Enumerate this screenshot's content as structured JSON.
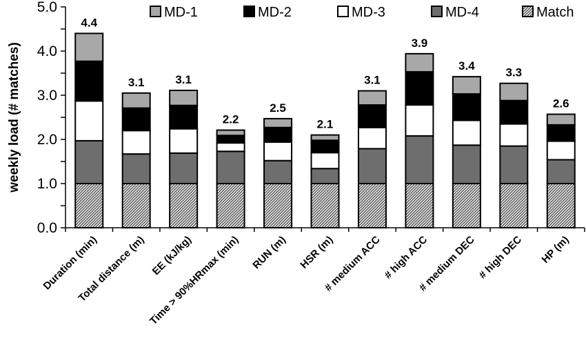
{
  "chart_data": {
    "type": "bar",
    "stacked": true,
    "title": "",
    "xlabel": "",
    "ylabel": "weekly load (# matches)",
    "ylim": [
      0,
      5
    ],
    "y_ticks": [
      "0.0",
      "1.0",
      "2.0",
      "3.0",
      "4.0",
      "5.0"
    ],
    "grid": false,
    "legend_position": "top",
    "categories": [
      "Duration (min)",
      "Total distance (m)",
      "EE (kJ/kg)",
      "Time > 90%HRmax (min)",
      "RUN (m)",
      "HSR (m)",
      "# medium ACC",
      "# high ACC",
      "# medium DEC",
      "# high DEC",
      "HP (m)"
    ],
    "series": [
      {
        "name": "Match",
        "color": "#bdbdbd",
        "pattern": "hatched",
        "values": [
          1.0,
          1.0,
          1.0,
          1.0,
          1.0,
          1.0,
          1.0,
          1.0,
          1.0,
          1.0,
          1.0
        ]
      },
      {
        "name": "MD-4",
        "color": "#6e6e6e",
        "values": [
          0.97,
          0.67,
          0.69,
          0.73,
          0.52,
          0.34,
          0.79,
          1.08,
          0.87,
          0.85,
          0.54
        ]
      },
      {
        "name": "MD-3",
        "color": "#ffffff",
        "values": [
          0.9,
          0.53,
          0.55,
          0.19,
          0.42,
          0.36,
          0.48,
          0.7,
          0.56,
          0.5,
          0.42
        ]
      },
      {
        "name": "MD-2",
        "color": "#000000",
        "values": [
          0.9,
          0.51,
          0.53,
          0.17,
          0.33,
          0.28,
          0.51,
          0.75,
          0.6,
          0.53,
          0.37
        ]
      },
      {
        "name": "MD-1",
        "color": "#a8a8a8",
        "values": [
          0.63,
          0.34,
          0.34,
          0.12,
          0.2,
          0.12,
          0.32,
          0.41,
          0.39,
          0.39,
          0.24
        ]
      }
    ],
    "legend_order": [
      "MD-1",
      "MD-2",
      "MD-3",
      "MD-4",
      "Match"
    ],
    "totals": [
      4.4,
      3.05,
      3.11,
      2.21,
      2.47,
      2.1,
      3.1,
      3.94,
      3.42,
      3.27,
      2.57
    ],
    "total_labels": [
      "4.4",
      "3.1",
      "3.1",
      "2.2",
      "2.5",
      "2.1",
      "3.1",
      "3.9",
      "3.4",
      "3.3",
      "2.6"
    ]
  }
}
